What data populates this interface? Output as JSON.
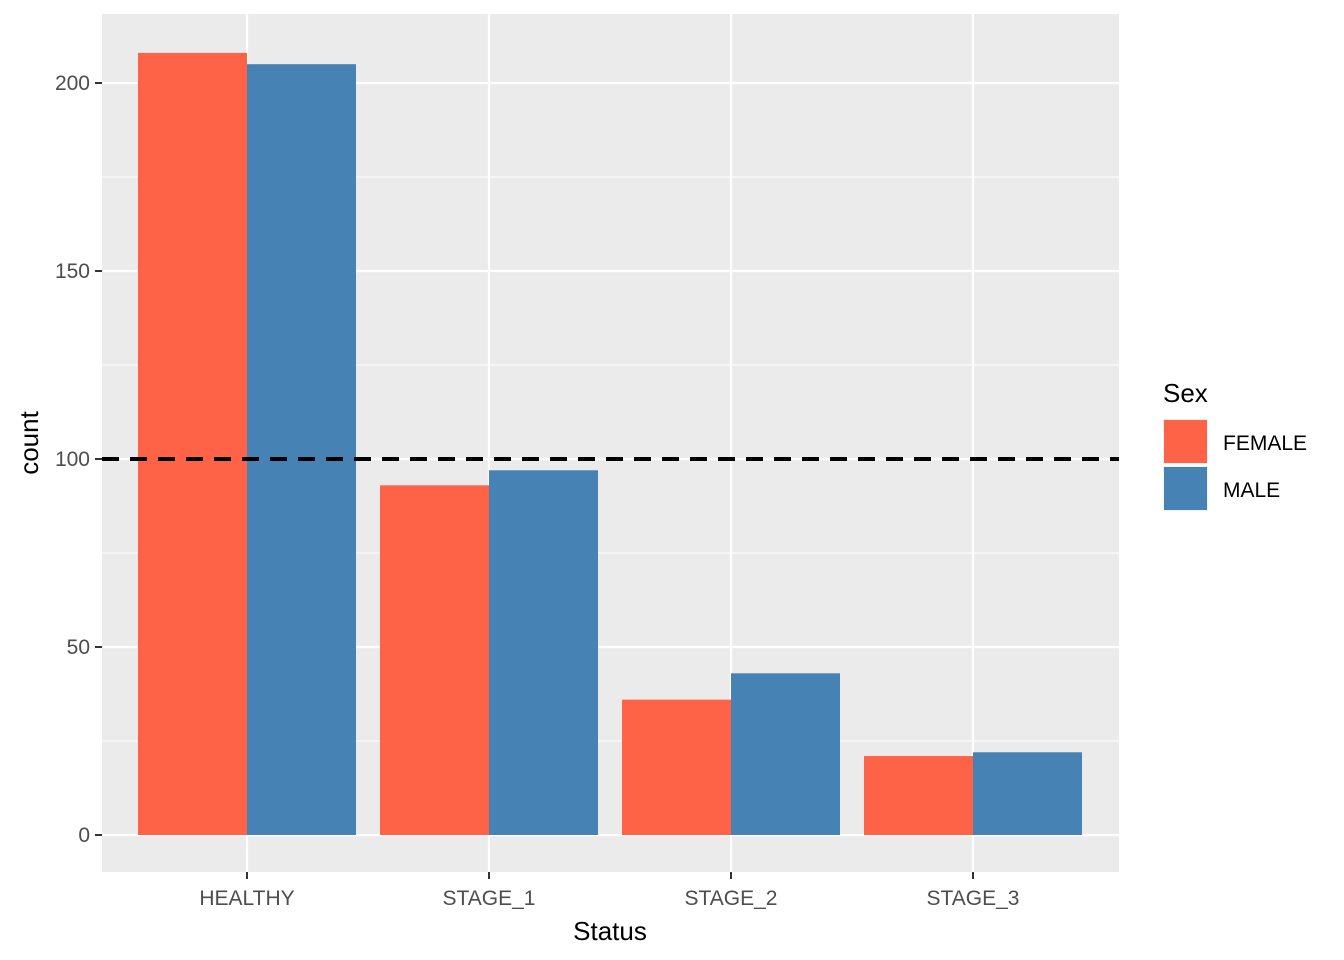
{
  "chart_data": {
    "type": "bar",
    "categories": [
      "HEALTHY",
      "STAGE_1",
      "STAGE_2",
      "STAGE_3"
    ],
    "series": [
      {
        "name": "FEMALE",
        "color": "#FF6347",
        "values": [
          208,
          93,
          36,
          21
        ]
      },
      {
        "name": "MALE",
        "color": "#4682B4",
        "values": [
          205,
          97,
          43,
          22
        ]
      }
    ],
    "xlabel": "Status",
    "ylabel": "count",
    "ylim": [
      -10,
      220
    ],
    "yticks": [
      0,
      50,
      100,
      150,
      200
    ],
    "yticks_minor": [
      25,
      75,
      125,
      175
    ],
    "reference_line": {
      "y": 100,
      "style": "dashed",
      "color": "#000000"
    },
    "legend": {
      "title": "Sex",
      "position": "right"
    },
    "grid": true,
    "panel_background": "#EBEBEB"
  }
}
